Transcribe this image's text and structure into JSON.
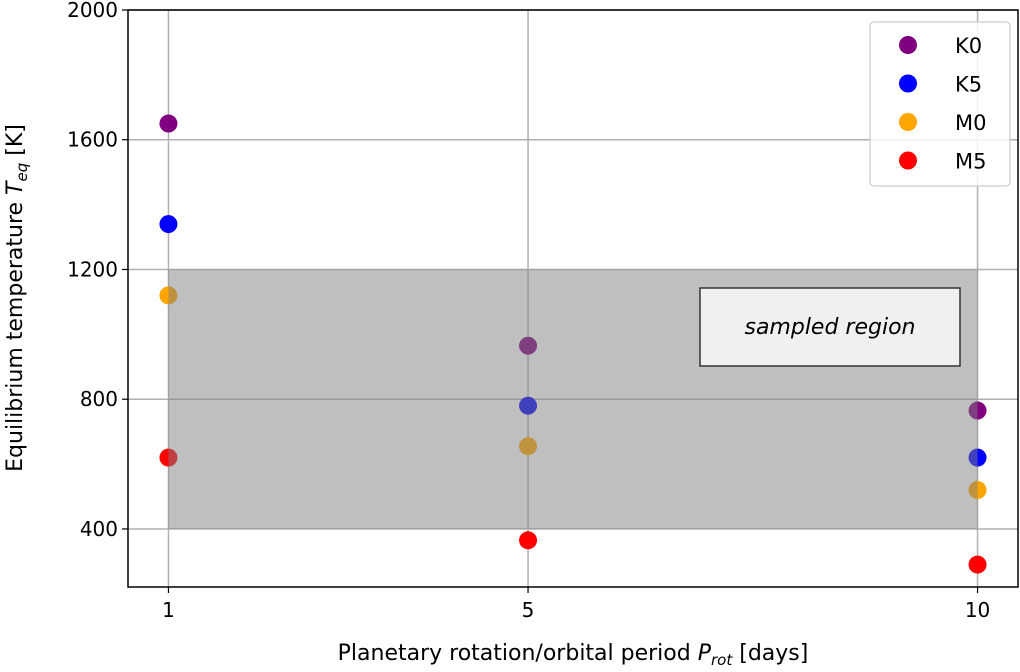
{
  "chart_data": {
    "type": "scatter",
    "xlabel": "Planetary rotation/orbital period",
    "xlabel_symbol": "P",
    "xlabel_sub": "rot",
    "xlabel_unit": "[days]",
    "ylabel": "Equilibrium temperature",
    "ylabel_symbol": "T",
    "ylabel_sub": "eq",
    "ylabel_unit": "[K]",
    "xlim": [
      0.55,
      10.45
    ],
    "ylim": [
      221,
      2000
    ],
    "xticks": [
      1,
      5,
      10
    ],
    "yticks": [
      400,
      800,
      1200,
      1600,
      2000
    ],
    "grid": true,
    "legend_position": "top-right",
    "shaded_region": {
      "x": [
        1,
        10
      ],
      "y": [
        400,
        1200
      ],
      "label": "sampled region",
      "color": "#808080",
      "alpha": 0.5
    },
    "series": [
      {
        "name": "K0",
        "color": "#800080",
        "x": [
          1,
          5,
          10
        ],
        "y": [
          1650,
          965,
          765
        ]
      },
      {
        "name": "K5",
        "color": "#0000ff",
        "x": [
          1,
          5,
          10
        ],
        "y": [
          1340,
          780,
          620
        ]
      },
      {
        "name": "M0",
        "color": "#ffa500",
        "x": [
          1,
          5,
          10
        ],
        "y": [
          1120,
          655,
          520
        ]
      },
      {
        "name": "M5",
        "color": "#ff0000",
        "x": [
          1,
          5,
          10
        ],
        "y": [
          620,
          365,
          290
        ]
      }
    ]
  }
}
